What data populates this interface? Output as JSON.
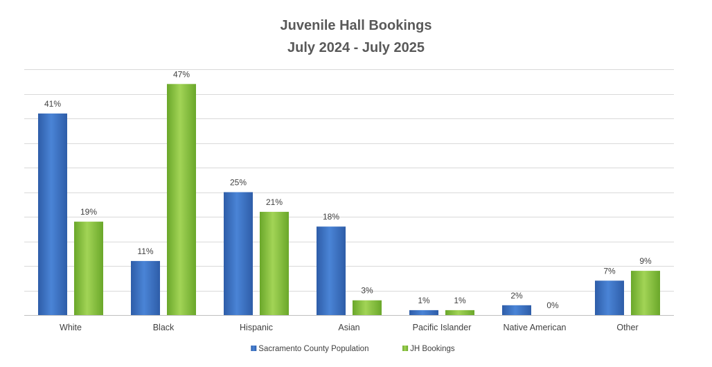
{
  "chart_data": {
    "type": "bar",
    "title": "Juvenile Hall Bookings",
    "subtitle": "July 2024 - July 2025",
    "categories": [
      "White",
      "Black",
      "Hispanic",
      "Asian",
      "Pacific Islander",
      "Native American",
      "Other"
    ],
    "series": [
      {
        "name": "Sacramento County Population",
        "values": [
          41,
          11,
          25,
          18,
          1,
          2,
          7
        ],
        "labels": [
          "41%",
          "11%",
          "25%",
          "18%",
          "1%",
          "2%",
          "7%"
        ],
        "color": "#3c72c4"
      },
      {
        "name": "JH Bookings",
        "values": [
          19,
          47,
          21,
          3,
          1,
          0,
          9
        ],
        "labels": [
          "19%",
          "47%",
          "21%",
          "3%",
          "1%",
          "0%",
          "9%"
        ],
        "color": "#8cc43c"
      }
    ],
    "ylim": [
      0,
      50
    ],
    "ytick_step": 5,
    "grid": true,
    "legend": "bottom",
    "xlabel": "",
    "ylabel": ""
  }
}
